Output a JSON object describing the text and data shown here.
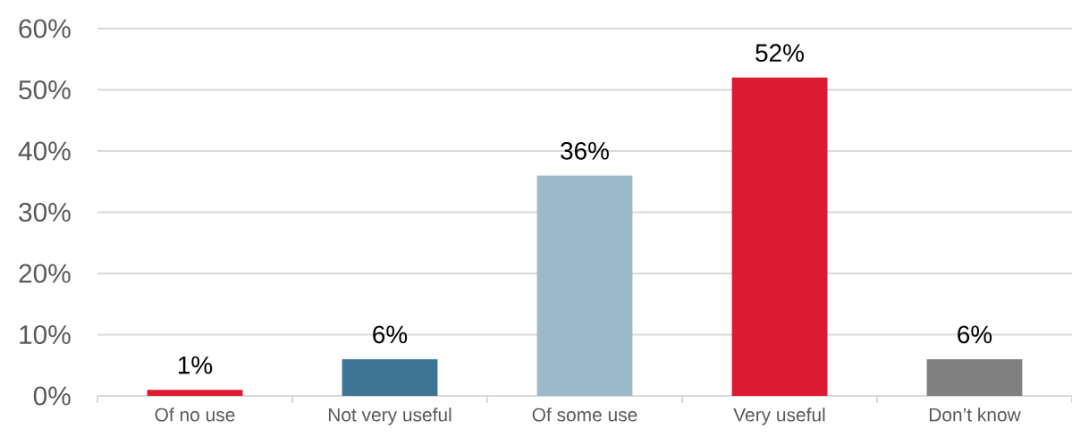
{
  "chart_data": {
    "type": "bar",
    "categories": [
      "Of no use",
      "Not very useful",
      "Of some use",
      "Very useful",
      "Don’t know"
    ],
    "values": [
      1,
      6,
      36,
      52,
      6
    ],
    "colors": [
      "#dc1a32",
      "#3e7595",
      "#9eb9cb",
      "#dc1a32",
      "#808080"
    ],
    "value_labels": [
      "1%",
      "6%",
      "36%",
      "52%",
      "6%"
    ],
    "ylim": [
      0,
      60
    ],
    "yticks": [
      {
        "value": 0,
        "label": "0%"
      },
      {
        "value": 10,
        "label": "10%"
      },
      {
        "value": 20,
        "label": "20%"
      },
      {
        "value": 30,
        "label": "30%"
      },
      {
        "value": 40,
        "label": "40%"
      },
      {
        "value": 50,
        "label": "50%"
      },
      {
        "value": 60,
        "label": "60%"
      }
    ],
    "grid": "y"
  }
}
